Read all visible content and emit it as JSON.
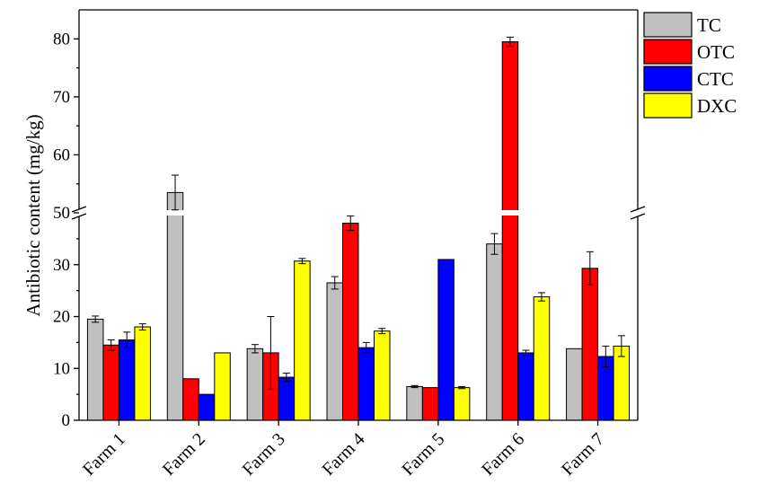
{
  "chart_data": {
    "type": "bar",
    "title": "",
    "xlabel": "",
    "ylabel": "Antibiotic content (mg/kg)",
    "ylim": [
      0,
      85
    ],
    "axis_break": [
      40,
      50
    ],
    "yticks": [
      0,
      10,
      20,
      30,
      50,
      60,
      70,
      80
    ],
    "legend_position": "top-right, outside plot",
    "categories": [
      "Farm 1",
      "Farm 2",
      "Farm 3",
      "Farm 4",
      "Farm 5",
      "Farm 6",
      "Farm 7"
    ],
    "series": [
      {
        "name": "TC",
        "color": "#c0c0c0",
        "values": [
          19.5,
          53.5,
          13.8,
          26.5,
          6.5,
          34.0,
          13.8
        ],
        "errors": [
          0.6,
          3.0,
          0.8,
          1.2,
          0.2,
          2.0,
          0
        ]
      },
      {
        "name": "OTC",
        "color": "#ff0000",
        "values": [
          14.5,
          8.0,
          13.0,
          38.0,
          6.3,
          79.5,
          29.3
        ],
        "errors": [
          1.0,
          0,
          7.0,
          1.4,
          0,
          0.8,
          3.2
        ]
      },
      {
        "name": "CTC",
        "color": "#0000ff",
        "values": [
          15.5,
          5.0,
          8.3,
          14.0,
          31.0,
          13.0,
          12.3
        ],
        "errors": [
          1.5,
          0,
          0.8,
          1.0,
          0,
          0.5,
          2.0
        ]
      },
      {
        "name": "DXC",
        "color": "#ffff00",
        "values": [
          18.0,
          13.0,
          30.7,
          17.2,
          6.3,
          23.8,
          14.3
        ],
        "errors": [
          0.6,
          0,
          0.5,
          0.5,
          0.2,
          0.8,
          2.0
        ]
      }
    ]
  }
}
